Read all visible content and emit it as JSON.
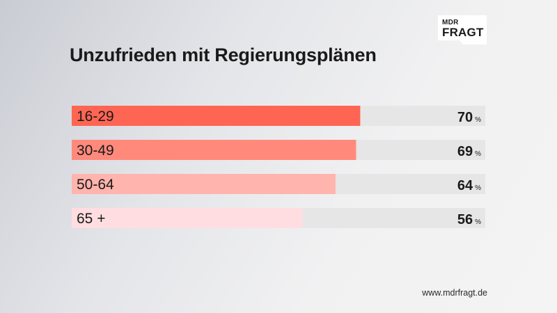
{
  "brand": {
    "line1": "MDR",
    "line2": "FRAGT"
  },
  "title": "Unzufrieden mit Regierungsplänen",
  "footer": "www.mdrfragt.de",
  "chart_data": {
    "type": "bar",
    "orientation": "horizontal",
    "title": "Unzufrieden mit Regierungsplänen",
    "categories": [
      "16-29",
      "30-49",
      "50-64",
      "65 +"
    ],
    "values": [
      70,
      69,
      64,
      56
    ],
    "unit": "%",
    "xlim": [
      0,
      100
    ],
    "grid": false,
    "legend": "none",
    "colors": [
      "#ff6553",
      "#ff8a7c",
      "#ffb4ad",
      "#ffdde0"
    ],
    "track_color": "#e6e6e6"
  }
}
